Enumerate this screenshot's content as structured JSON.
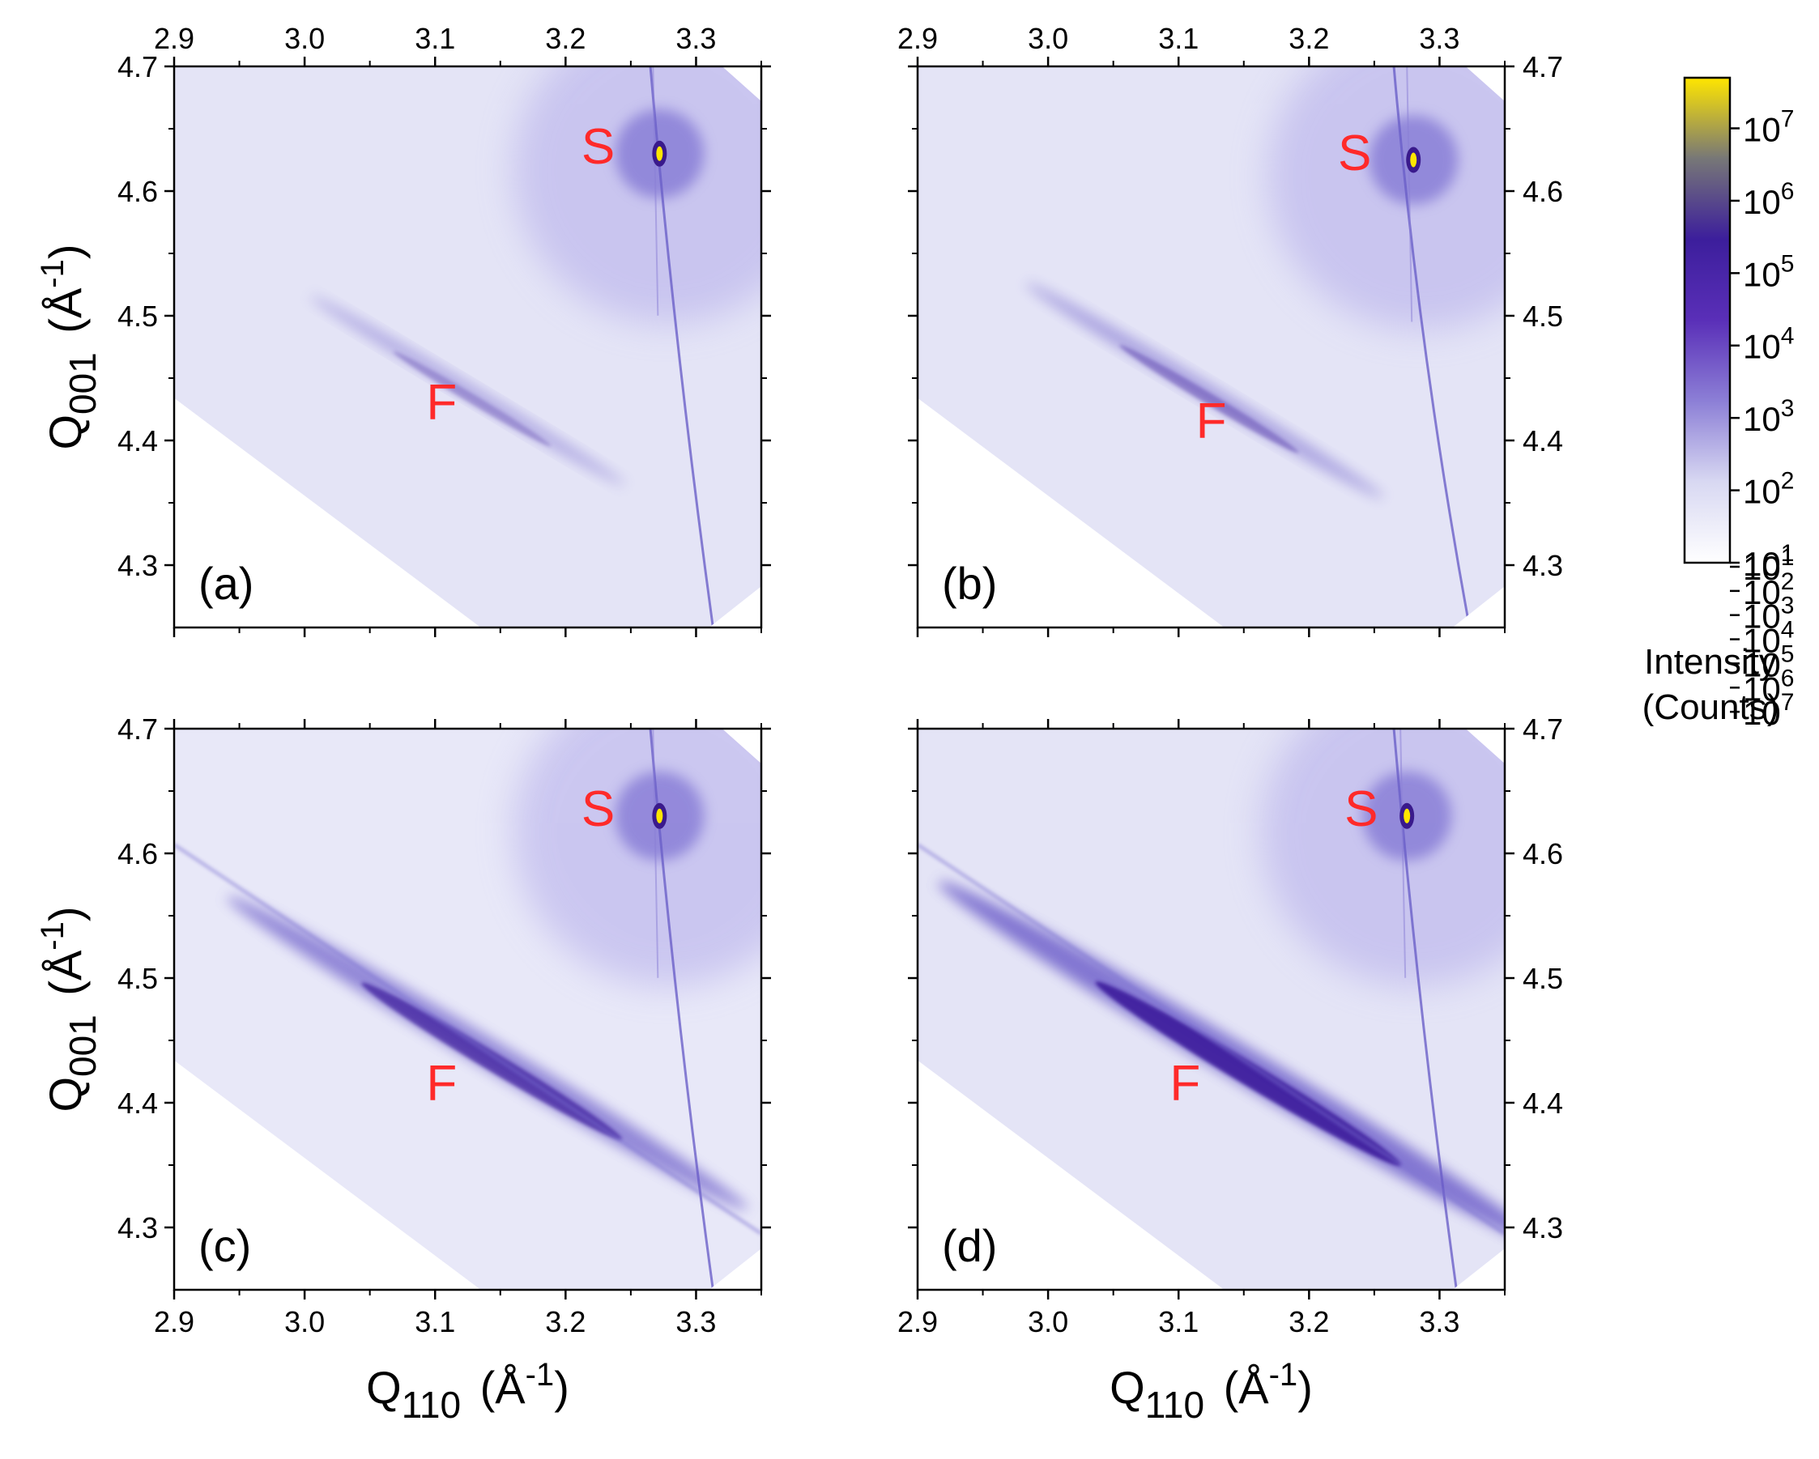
{
  "chart_data": {
    "type": "heatmap",
    "description_axes": {
      "x_label_main": "Q",
      "x_label_sub": "110",
      "x_label_unit_open": "(Å",
      "x_label_unit_exp": "-1",
      "x_label_unit_close": ")",
      "y_label_main": "Q",
      "y_label_sub": "001",
      "y_label_unit_open": "(Å",
      "y_label_unit_exp": "-1",
      "y_label_unit_close": ")",
      "xlim": [
        2.9,
        3.35
      ],
      "ylim": [
        4.25,
        4.7
      ],
      "x_ticks": [
        "2.9",
        "3.0",
        "3.1",
        "3.2",
        "3.3"
      ],
      "x_tick_values": [
        2.9,
        3.0,
        3.1,
        3.2,
        3.3
      ],
      "y_ticks": [
        "4.3",
        "4.4",
        "4.5",
        "4.6",
        "4.7"
      ],
      "y_tick_values": [
        4.3,
        4.4,
        4.5,
        4.6,
        4.7
      ]
    },
    "panels": [
      {
        "label": "(a)",
        "substrate_label": "S",
        "film_label": "F",
        "substrate_peak": [
          3.272,
          4.63
        ],
        "film_peak": [
          3.125,
          4.44
        ],
        "film_label_pos": [
          3.105,
          4.43
        ],
        "substrate_label_pos": [
          3.225,
          4.635
        ],
        "film_strength": 0.18
      },
      {
        "label": "(b)",
        "substrate_label": "S",
        "film_label": "F",
        "substrate_peak": [
          3.28,
          4.625
        ],
        "film_peak": [
          3.12,
          4.44
        ],
        "film_label_pos": [
          3.125,
          4.415
        ],
        "substrate_label_pos": [
          3.235,
          4.63
        ],
        "film_strength": 0.3
      },
      {
        "label": "(c)",
        "substrate_label": "S",
        "film_label": "F",
        "substrate_peak": [
          3.272,
          4.63
        ],
        "film_peak": [
          3.14,
          4.44
        ],
        "film_label_pos": [
          3.105,
          4.415
        ],
        "substrate_label_pos": [
          3.225,
          4.635
        ],
        "film_strength": 0.75
      },
      {
        "label": "(d)",
        "substrate_label": "S",
        "film_label": "F",
        "substrate_peak": [
          3.275,
          4.63
        ],
        "film_peak": [
          3.15,
          4.43
        ],
        "film_label_pos": [
          3.105,
          4.415
        ],
        "substrate_label_pos": [
          3.24,
          4.635
        ],
        "film_strength": 1.0
      }
    ],
    "colorbar": {
      "title_line1": "Intensity",
      "title_line2": "(Counts)",
      "scale": "log",
      "range": [
        10,
        50000000
      ],
      "tick_base": "10",
      "tick_exponents": [
        "1",
        "2",
        "3",
        "4",
        "5",
        "6",
        "7"
      ],
      "colors": [
        "#ffffff",
        "#d8d8f2",
        "#8c7fd6",
        "#5a2fb8",
        "#3c1e9c",
        "#777777",
        "#ffe600"
      ]
    }
  }
}
